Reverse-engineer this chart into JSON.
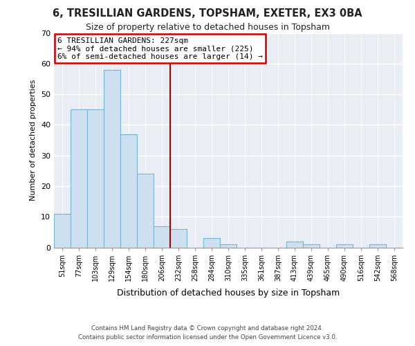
{
  "title": "6, TRESILLIAN GARDENS, TOPSHAM, EXETER, EX3 0BA",
  "subtitle": "Size of property relative to detached houses in Topsham",
  "xlabel": "Distribution of detached houses by size in Topsham",
  "ylabel": "Number of detached properties",
  "bar_labels": [
    "51sqm",
    "77sqm",
    "103sqm",
    "129sqm",
    "154sqm",
    "180sqm",
    "206sqm",
    "232sqm",
    "258sqm",
    "284sqm",
    "310sqm",
    "335sqm",
    "361sqm",
    "387sqm",
    "413sqm",
    "439sqm",
    "465sqm",
    "490sqm",
    "516sqm",
    "542sqm",
    "568sqm"
  ],
  "bar_values": [
    11,
    45,
    45,
    58,
    37,
    24,
    7,
    6,
    0,
    3,
    1,
    0,
    0,
    0,
    2,
    1,
    0,
    1,
    0,
    1,
    0
  ],
  "bar_color": "#cce0f0",
  "bar_edge_color": "#7ab4d4",
  "ylim": [
    0,
    70
  ],
  "yticks": [
    0,
    10,
    20,
    30,
    40,
    50,
    60,
    70
  ],
  "property_line_idx": 7,
  "property_line_color": "#aa0000",
  "annotation_title": "6 TRESILLIAN GARDENS: 227sqm",
  "annotation_line1": "← 94% of detached houses are smaller (225)",
  "annotation_line2": "6% of semi-detached houses are larger (14) →",
  "annotation_box_color": "#ffffff",
  "annotation_box_edge": "#cc0000",
  "footer_line1": "Contains HM Land Registry data © Crown copyright and database right 2024.",
  "footer_line2": "Contains public sector information licensed under the Open Government Licence v3.0.",
  "bg_color": "#ffffff",
  "plot_bg_color": "#e8eef4"
}
